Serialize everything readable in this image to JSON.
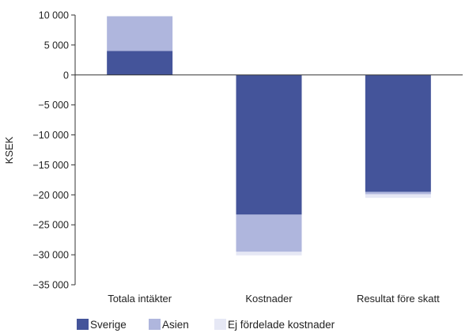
{
  "chart_data": {
    "type": "bar",
    "stacked": true,
    "title": "",
    "xlabel": "",
    "ylabel": "KSEK",
    "ylim": [
      -35000,
      10000
    ],
    "yticks": [
      10000,
      5000,
      0,
      -5000,
      -10000,
      -15000,
      -20000,
      -25000,
      -30000,
      -35000
    ],
    "ytick_labels": [
      "10 000",
      "5 000",
      "0",
      "−5 000",
      "−10 000",
      "−15 000",
      "−20 000",
      "−25 000",
      "−30 000",
      "−35 000"
    ],
    "categories": [
      "Totala intäkter",
      "Kostnader",
      "Resultat före skatt"
    ],
    "series": [
      {
        "name": "Sverige",
        "color": "#44549a",
        "values": [
          4000,
          -23300,
          -19500
        ]
      },
      {
        "name": "Asien",
        "color": "#afb6dd",
        "values": [
          5800,
          -6200,
          -400
        ]
      },
      {
        "name": "Ej fördelade kostnader",
        "color": "#e6e8f5",
        "values": [
          0,
          -600,
          -600
        ]
      }
    ],
    "grid": false,
    "legend": "bottom-left"
  }
}
